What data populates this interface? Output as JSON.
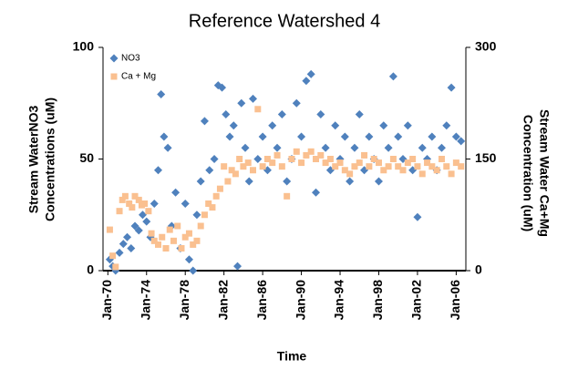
{
  "chart_data": {
    "type": "scatter",
    "title": "Reference Watershed 4",
    "x_label": "Time",
    "y_label": [
      "Stream WaterNO3",
      "Concentrations (uM)"
    ],
    "y2_label": [
      "Stream Water Ca+Mg",
      "Concentration (uM)"
    ],
    "legend": "top-left",
    "xlim": [
      1969.5,
      2007
    ],
    "xticks": [
      {
        "value": 1970,
        "label": "Jan-70"
      },
      {
        "value": 1974,
        "label": "Jan-74"
      },
      {
        "value": 1978,
        "label": "Jan-78"
      },
      {
        "value": 1982,
        "label": "Jan-82"
      },
      {
        "value": 1986,
        "label": "Jan-86"
      },
      {
        "value": 1990,
        "label": "Jan-90"
      },
      {
        "value": 1994,
        "label": "Jan-94"
      },
      {
        "value": 1998,
        "label": "Jan-98"
      },
      {
        "value": 2002,
        "label": "Jan-02"
      },
      {
        "value": 2006,
        "label": "Jan-06"
      }
    ],
    "ylim": [
      0,
      100
    ],
    "yticks": [
      0,
      50,
      100
    ],
    "y2lim": [
      0,
      300
    ],
    "y2ticks": [
      0,
      150,
      300
    ],
    "series": [
      {
        "name": "NO3",
        "color": "#4f81bd",
        "marker": "diamond",
        "x": [
          1970.2,
          1970.5,
          1970.8,
          1971.2,
          1971.6,
          1972,
          1972.4,
          1972.8,
          1973.2,
          1973.6,
          1974,
          1974.4,
          1974.8,
          1975.2,
          1975.5,
          1975.8,
          1976.2,
          1976.6,
          1977,
          1977.5,
          1978,
          1978.4,
          1978.8,
          1979.2,
          1979.6,
          1980,
          1980.5,
          1981,
          1981.4,
          1981.8,
          1982.2,
          1982.6,
          1983,
          1983.4,
          1983.8,
          1984.2,
          1984.6,
          1985,
          1985.5,
          1986,
          1986.5,
          1987,
          1987.5,
          1988,
          1988.5,
          1989,
          1989.5,
          1990,
          1990.5,
          1991,
          1991.5,
          1992,
          1992.5,
          1993,
          1993.5,
          1994,
          1994.5,
          1995,
          1995.5,
          1996,
          1996.5,
          1997,
          1997.5,
          1998,
          1998.5,
          1999,
          1999.5,
          2000,
          2000.5,
          2001,
          2001.5,
          2002,
          2002.5,
          2003,
          2003.5,
          2004,
          2004.5,
          2005,
          2005.5,
          2006,
          2006.5
        ],
        "values": [
          5,
          2,
          0,
          8,
          12,
          15,
          10,
          20,
          18,
          25,
          22,
          15,
          30,
          45,
          79,
          60,
          55,
          20,
          35,
          10,
          30,
          5,
          0,
          25,
          40,
          67,
          45,
          50,
          83,
          82,
          70,
          60,
          65,
          2,
          75,
          55,
          40,
          77,
          50,
          60,
          45,
          65,
          55,
          70,
          40,
          50,
          75,
          60,
          85,
          88,
          35,
          70,
          55,
          45,
          65,
          50,
          60,
          40,
          55,
          70,
          45,
          60,
          50,
          40,
          65,
          55,
          87,
          60,
          50,
          65,
          45,
          24,
          55,
          50,
          60,
          45,
          55,
          65,
          82,
          60,
          58
        ]
      },
      {
        "name": "Ca + Mg",
        "color": "#fac090",
        "marker": "square",
        "axis": "y2",
        "x": [
          1970.2,
          1970.5,
          1970.8,
          1971.2,
          1971.5,
          1971.8,
          1972.2,
          1972.5,
          1972.8,
          1973.2,
          1973.5,
          1973.8,
          1974.2,
          1974.5,
          1974.8,
          1975.2,
          1975.6,
          1976,
          1976.4,
          1976.8,
          1977.2,
          1977.6,
          1978,
          1978.4,
          1978.8,
          1979.2,
          1979.6,
          1980,
          1980.4,
          1980.8,
          1981.2,
          1981.6,
          1982,
          1982.4,
          1982.8,
          1983.2,
          1983.6,
          1984,
          1984.5,
          1985,
          1985.5,
          1986,
          1986.5,
          1987,
          1987.5,
          1988,
          1988.5,
          1989,
          1989.5,
          1990,
          1990.5,
          1991,
          1991.5,
          1992,
          1992.5,
          1993,
          1993.5,
          1994,
          1994.5,
          1995,
          1995.5,
          1996,
          1996.5,
          1997,
          1997.5,
          1998,
          1998.5,
          1999,
          1999.5,
          2000,
          2000.5,
          2001,
          2001.5,
          2002,
          2002.5,
          2003,
          2003.5,
          2004,
          2004.5,
          2005,
          2005.5,
          2006,
          2006.5
        ],
        "values": [
          55,
          20,
          5,
          80,
          95,
          100,
          90,
          85,
          100,
          95,
          88,
          90,
          80,
          50,
          40,
          35,
          45,
          30,
          55,
          40,
          60,
          30,
          45,
          50,
          35,
          40,
          60,
          75,
          90,
          85,
          100,
          110,
          140,
          120,
          135,
          130,
          150,
          140,
          145,
          135,
          217,
          140,
          150,
          145,
          155,
          140,
          100,
          150,
          160,
          145,
          155,
          160,
          150,
          155,
          145,
          150,
          140,
          145,
          135,
          130,
          140,
          145,
          155,
          140,
          150,
          145,
          135,
          140,
          150,
          140,
          135,
          145,
          150,
          140,
          130,
          145,
          140,
          135,
          150,
          140,
          130,
          145,
          140
        ]
      }
    ]
  }
}
